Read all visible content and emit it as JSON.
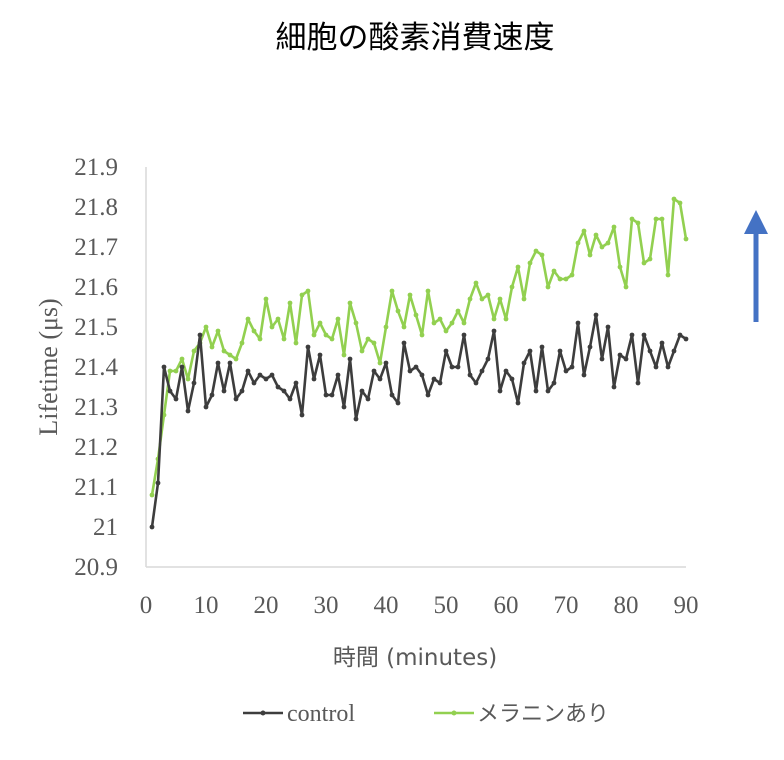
{
  "chart_data": {
    "type": "line",
    "title": "細胞の酸素消費速度",
    "xlabel": "時間 (minutes)",
    "ylabel": "Lifetime (μs)",
    "xlim": [
      0,
      90
    ],
    "ylim": [
      20.9,
      21.9
    ],
    "xticks": [
      0,
      10,
      20,
      30,
      40,
      50,
      60,
      70,
      80,
      90
    ],
    "yticks": [
      20.9,
      21,
      21.1,
      21.2,
      21.3,
      21.4,
      21.5,
      21.6,
      21.7,
      21.8,
      21.9
    ],
    "ytick_labels": [
      "20.9",
      "21",
      "21.1",
      "21.2",
      "21.3",
      "21.4",
      "21.5",
      "21.6",
      "21.7",
      "21.8",
      "21.9"
    ],
    "grid": false,
    "legend_position": "bottom",
    "annotation": "up-arrow",
    "series": [
      {
        "name": "control",
        "color": "#3d3d3d",
        "x": [
          1,
          2,
          3,
          4,
          5,
          6,
          7,
          8,
          9,
          10,
          11,
          12,
          13,
          14,
          15,
          16,
          17,
          18,
          19,
          20,
          21,
          22,
          23,
          24,
          25,
          26,
          27,
          28,
          29,
          30,
          31,
          32,
          33,
          34,
          35,
          36,
          37,
          38,
          39,
          40,
          41,
          42,
          43,
          44,
          45,
          46,
          47,
          48,
          49,
          50,
          51,
          52,
          53,
          54,
          55,
          56,
          57,
          58,
          59,
          60,
          61,
          62,
          63,
          64,
          65,
          66,
          67,
          68,
          69,
          70,
          71,
          72,
          73,
          74,
          75,
          76,
          77,
          78,
          79,
          80,
          81,
          82,
          83,
          84,
          85,
          86,
          87,
          88,
          89,
          90
        ],
        "y": [
          21.0,
          21.11,
          21.4,
          21.34,
          21.32,
          21.4,
          21.29,
          21.36,
          21.48,
          21.3,
          21.33,
          21.41,
          21.34,
          21.41,
          21.32,
          21.34,
          21.39,
          21.36,
          21.38,
          21.37,
          21.38,
          21.35,
          21.34,
          21.32,
          21.36,
          21.28,
          21.45,
          21.37,
          21.43,
          21.33,
          21.33,
          21.38,
          21.3,
          21.42,
          21.27,
          21.34,
          21.32,
          21.39,
          21.37,
          21.41,
          21.33,
          21.31,
          21.46,
          21.39,
          21.4,
          21.38,
          21.33,
          21.37,
          21.36,
          21.44,
          21.4,
          21.4,
          21.48,
          21.38,
          21.36,
          21.39,
          21.42,
          21.49,
          21.34,
          21.39,
          21.37,
          21.31,
          21.41,
          21.44,
          21.34,
          21.45,
          21.34,
          21.36,
          21.44,
          21.39,
          21.4,
          21.51,
          21.38,
          21.45,
          21.53,
          21.42,
          21.5,
          21.35,
          21.43,
          21.42,
          21.48,
          21.36,
          21.48,
          21.44,
          21.4,
          21.46,
          21.4,
          21.44,
          21.48,
          21.47
        ]
      },
      {
        "name": "メラニンあり",
        "color": "#92d050",
        "x": [
          1,
          2,
          3,
          4,
          5,
          6,
          7,
          8,
          9,
          10,
          11,
          12,
          13,
          14,
          15,
          16,
          17,
          18,
          19,
          20,
          21,
          22,
          23,
          24,
          25,
          26,
          27,
          28,
          29,
          30,
          31,
          32,
          33,
          34,
          35,
          36,
          37,
          38,
          39,
          40,
          41,
          42,
          43,
          44,
          45,
          46,
          47,
          48,
          49,
          50,
          51,
          52,
          53,
          54,
          55,
          56,
          57,
          58,
          59,
          60,
          61,
          62,
          63,
          64,
          65,
          66,
          67,
          68,
          69,
          70,
          71,
          72,
          73,
          74,
          75,
          76,
          77,
          78,
          79,
          80,
          81,
          82,
          83,
          84,
          85,
          86,
          87,
          88,
          89,
          90
        ],
        "y": [
          21.08,
          21.17,
          21.28,
          21.39,
          21.39,
          21.42,
          21.37,
          21.44,
          21.46,
          21.5,
          21.45,
          21.49,
          21.44,
          21.43,
          21.42,
          21.46,
          21.52,
          21.49,
          21.47,
          21.57,
          21.5,
          21.52,
          21.47,
          21.56,
          21.46,
          21.58,
          21.59,
          21.48,
          21.51,
          21.48,
          21.47,
          21.52,
          21.43,
          21.56,
          21.51,
          21.44,
          21.47,
          21.46,
          21.41,
          21.5,
          21.59,
          21.54,
          21.5,
          21.58,
          21.53,
          21.48,
          21.59,
          21.51,
          21.52,
          21.49,
          21.51,
          21.54,
          21.51,
          21.57,
          21.61,
          21.57,
          21.58,
          21.52,
          21.57,
          21.52,
          21.6,
          21.65,
          21.57,
          21.66,
          21.69,
          21.68,
          21.6,
          21.64,
          21.62,
          21.62,
          21.63,
          21.71,
          21.74,
          21.68,
          21.73,
          21.7,
          21.71,
          21.75,
          21.65,
          21.6,
          21.77,
          21.76,
          21.66,
          21.67,
          21.77,
          21.77,
          21.63,
          21.82,
          21.81,
          21.72
        ]
      }
    ]
  }
}
